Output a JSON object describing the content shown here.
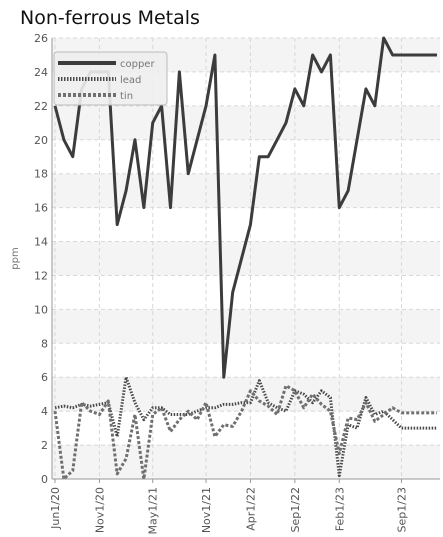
{
  "chart_data": {
    "type": "line",
    "title": "Non-ferrous Metals",
    "xlabel": "",
    "ylabel": "ppm",
    "ylim": [
      0,
      26
    ],
    "yticks": [
      0,
      2,
      4,
      6,
      8,
      10,
      12,
      14,
      16,
      18,
      20,
      22,
      24,
      26
    ],
    "grid": true,
    "legend_position": "top-left",
    "x_ticks": [
      "Jun1/20",
      "Nov1/20",
      "May1/21",
      "Nov1/21",
      "Apr1/22",
      "Sep1/22",
      "Feb1/23",
      "Sep1/23"
    ],
    "x": [
      "2020-06-01",
      "2020-07-01",
      "2020-08-01",
      "2020-09-01",
      "2020-10-01",
      "2020-11-01",
      "2020-12-01",
      "2021-01-01",
      "2021-02-01",
      "2021-03-01",
      "2021-04-01",
      "2021-05-01",
      "2021-06-01",
      "2021-07-01",
      "2021-08-01",
      "2021-09-01",
      "2021-10-01",
      "2021-11-01",
      "2021-12-01",
      "2022-01-01",
      "2022-02-01",
      "2022-03-01",
      "2022-04-01",
      "2022-05-01",
      "2022-06-01",
      "2022-07-01",
      "2022-08-01",
      "2022-09-01",
      "2022-10-01",
      "2022-11-01",
      "2022-12-01",
      "2023-01-01",
      "2023-02-01",
      "2023-03-01",
      "2023-04-01",
      "2023-05-01",
      "2023-06-01",
      "2023-07-01",
      "2023-08-01",
      "2023-09-01",
      "2023-10-01",
      "2023-11-01",
      "2023-12-01",
      "2024-01-01"
    ],
    "series": [
      {
        "name": "copper",
        "color": "#3c3c3c",
        "style": "solid",
        "values": [
          22,
          20,
          19,
          23,
          24,
          24,
          24,
          15,
          17,
          20,
          16,
          21,
          22,
          16,
          24,
          18,
          20,
          22,
          25,
          6,
          11,
          13,
          15,
          19,
          19,
          20,
          21,
          23,
          22,
          25,
          24,
          25,
          16,
          17,
          20,
          23,
          22,
          26,
          25,
          25,
          25,
          25,
          25,
          25
        ]
      },
      {
        "name": "lead",
        "color": "#4a4a4a",
        "style": "dotted",
        "values": [
          4.2,
          4.3,
          4.2,
          4.4,
          4.3,
          4.4,
          4.5,
          2.5,
          6.0,
          4.5,
          3.5,
          4.2,
          4.2,
          3.8,
          3.8,
          3.8,
          4.0,
          4.2,
          4.2,
          4.4,
          4.4,
          4.5,
          4.5,
          5.8,
          4.5,
          4.2,
          4.0,
          5.2,
          5.0,
          4.5,
          5.2,
          4.8,
          0.2,
          3.2,
          3.0,
          4.8,
          3.8,
          4.0,
          3.5,
          3.0,
          3.0,
          3.0,
          3.0,
          3.0
        ]
      },
      {
        "name": "tin",
        "color": "#707070",
        "style": "dashed",
        "values": [
          4.0,
          0.0,
          0.5,
          4.5,
          4.0,
          3.8,
          4.6,
          0.3,
          1.2,
          3.8,
          0.0,
          3.8,
          4.2,
          2.8,
          3.5,
          4.0,
          3.5,
          4.5,
          2.5,
          3.2,
          3.1,
          4.0,
          5.2,
          4.6,
          4.3,
          3.8,
          5.5,
          5.2,
          4.2,
          5.0,
          4.4,
          4.0,
          1.5,
          3.6,
          3.5,
          4.5,
          3.4,
          3.8,
          4.2,
          3.9,
          3.9,
          3.9,
          3.9,
          3.9
        ]
      }
    ]
  }
}
